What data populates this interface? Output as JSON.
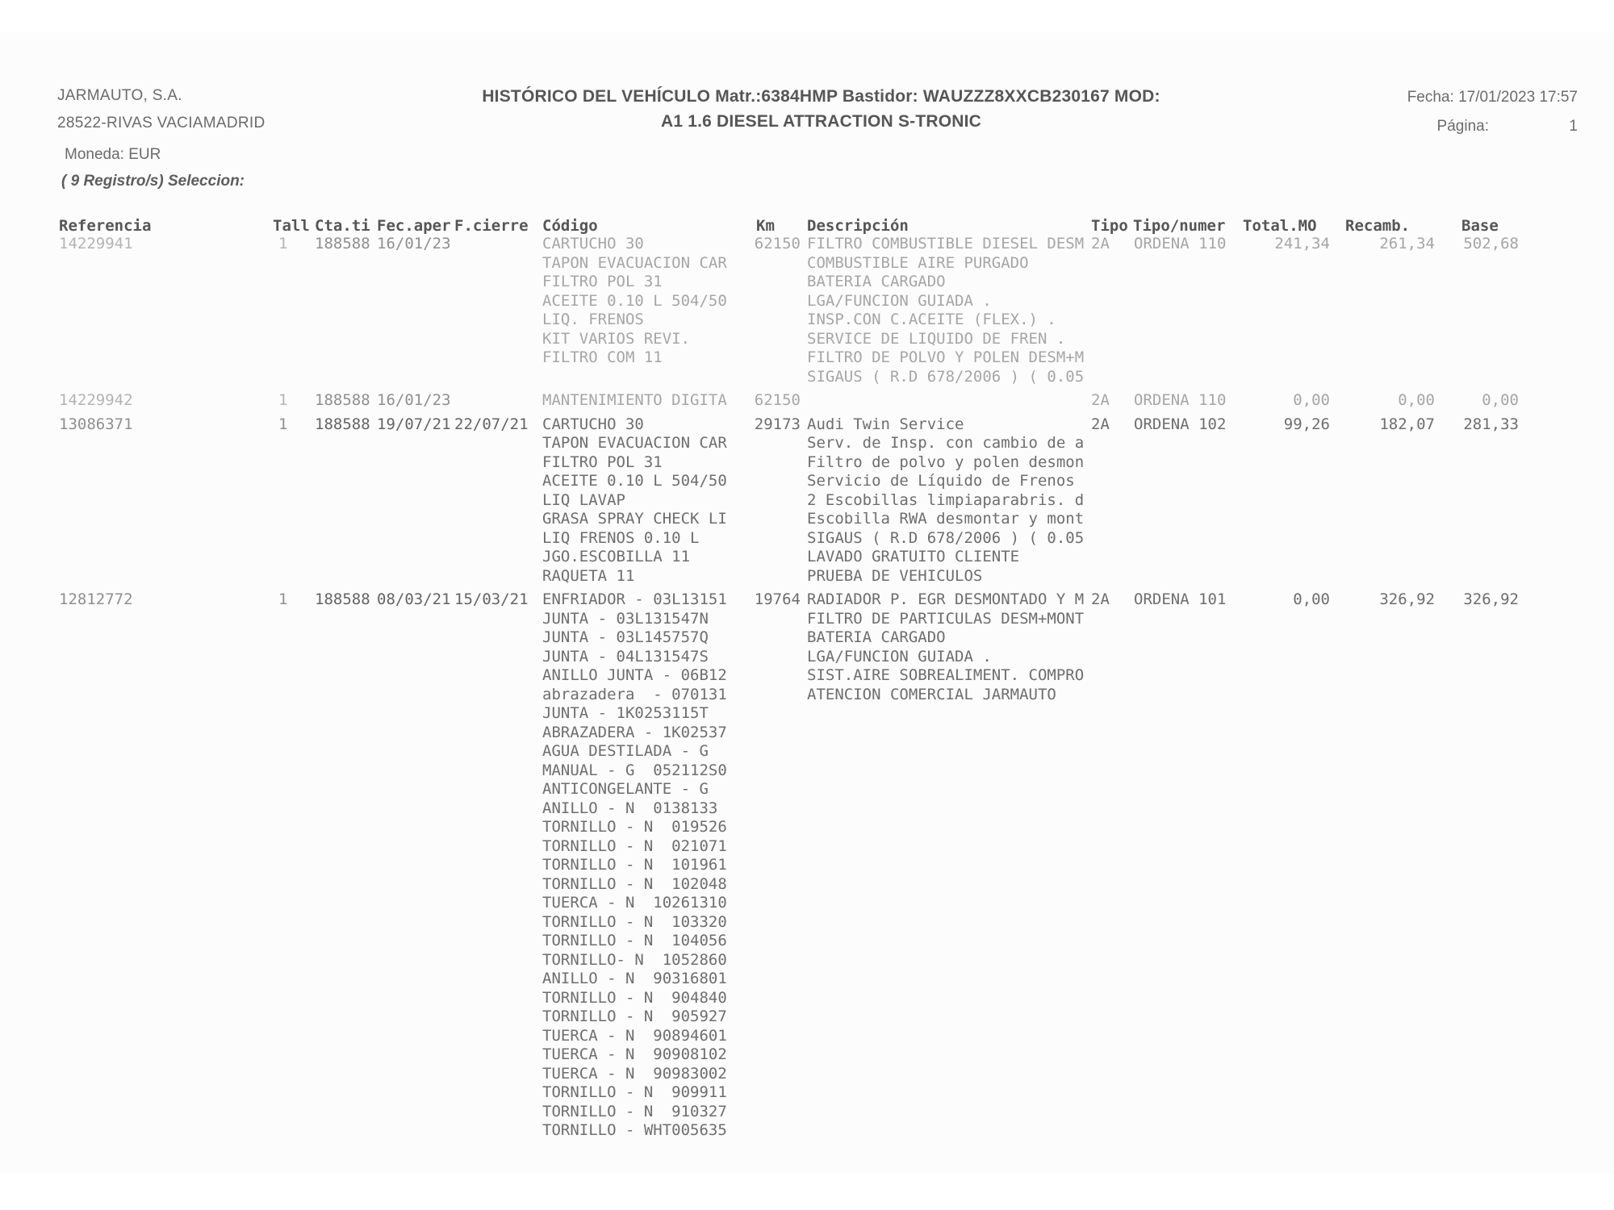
{
  "page": {
    "company": "JARMAUTO, S.A.",
    "location": "28522-RIVAS VACIAMADRID",
    "currency_label": "Moneda: EUR",
    "selection_label": "( 9 Registro/s) Seleccion:",
    "title_line1": "HISTÓRICO DEL VEHÍCULO Matr.:6384HMP Bastidor: WAUZZZ8XXCB230167 MOD:",
    "title_line2": "A1 1.6 DIESEL ATTRACTION S-TRONIC",
    "date_label": "Fecha: 17/01/2023 17:57",
    "page_label": "Página:",
    "page_number": "1"
  },
  "table": {
    "headers": {
      "referencia": "Referencia",
      "tall": "Tall",
      "cta": "Cta.ti",
      "fec_aper": "Fec.aper",
      "f_cierre": "F.cierre",
      "codigo": "Código",
      "km": "Km",
      "descripcion": "Descripción",
      "tipo": "Tipo",
      "tipo_numer": "Tipo/numer",
      "total_mo": "Total.MO",
      "recamb": "Recamb.",
      "base": "Base"
    },
    "rows": [
      {
        "tone": "light",
        "referencia": "14229941",
        "tall": "1",
        "cta": "188588",
        "fec_aper": "16/01/23",
        "f_cierre": "",
        "codigo": [
          "CARTUCHO 30",
          "TAPON EVACUACION CAR",
          "FILTRO POL 31",
          "ACEITE 0.10 L 504/50",
          "LIQ. FRENOS",
          "KIT VARIOS REVI.",
          "FILTRO COM 11"
        ],
        "km": "62150",
        "descripcion": [
          "FILTRO COMBUSTIBLE DIESEL DESM",
          "COMBUSTIBLE AIRE PURGADO",
          "BATERIA CARGADO",
          "LGA/FUNCION GUIADA .",
          "INSP.CON C.ACEITE (FLEX.) .",
          "SERVICE DE LIQUIDO DE FREN .",
          "FILTRO DE POLVO Y POLEN DESM+M",
          "SIGAUS ( R.D 678/2006 ) ( 0.05"
        ],
        "tipo": "2A",
        "tipo_numer": "ORDENA 110",
        "total_mo": "241,34",
        "recamb": "261,34",
        "base": "502,68"
      },
      {
        "tone": "light",
        "referencia": "14229942",
        "tall": "1",
        "cta": "188588",
        "fec_aper": "16/01/23",
        "f_cierre": "",
        "codigo": [
          "MANTENIMIENTO DIGITA"
        ],
        "km": "62150",
        "descripcion": [],
        "tipo": "2A",
        "tipo_numer": "ORDENA 110",
        "total_mo": "0,00",
        "recamb": "0,00",
        "base": "0,00"
      },
      {
        "tone": "dark",
        "referencia": "13086371",
        "tall": "1",
        "cta": "188588",
        "fec_aper": "19/07/21",
        "f_cierre": "22/07/21",
        "codigo": [
          "CARTUCHO 30",
          "TAPON EVACUACION CAR",
          "FILTRO POL 31",
          "ACEITE 0.10 L 504/50",
          "LIQ LAVAP",
          "GRASA SPRAY CHECK LI",
          "LIQ FRENOS 0.10 L",
          "JGO.ESCOBILLA 11",
          "RAQUETA 11"
        ],
        "km": "29173",
        "descripcion": [
          "Audi Twin Service",
          "Serv. de Insp. con cambio de a",
          "Filtro de polvo y polen desmon",
          "Servicio de Líquido de Frenos",
          "2 Escobillas limpiaparabris. d",
          "Escobilla RWA desmontar y mont",
          "SIGAUS ( R.D 678/2006 ) ( 0.05",
          "LAVADO GRATUITO CLIENTE",
          "PRUEBA DE VEHICULOS"
        ],
        "tipo": "2A",
        "tipo_numer": "ORDENA 102",
        "total_mo": "99,26",
        "recamb": "182,07",
        "base": "281,33"
      },
      {
        "tone": "dark",
        "referencia": "12812772",
        "tall": "1",
        "cta": "188588",
        "fec_aper": "08/03/21",
        "f_cierre": "15/03/21",
        "codigo": [
          "ENFRIADOR - 03L13151",
          "JUNTA - 03L131547N",
          "JUNTA - 03L145757Q",
          "JUNTA - 04L131547S",
          "ANILLO JUNTA - 06B12",
          "abrazadera  - 070131",
          "JUNTA - 1K0253115T",
          "ABRAZADERA - 1K02537",
          "AGUA DESTILADA - G",
          "MANUAL - G  052112S0",
          "ANTICONGELANTE - G",
          "ANILLO - N  0138133",
          "TORNILLO - N  019526",
          "TORNILLO - N  021071",
          "TORNILLO - N  101961",
          "TORNILLO - N  102048",
          "TUERCA - N  10261310",
          "TORNILLO - N  103320",
          "TORNILLO - N  104056",
          "TORNILLO- N  1052860",
          "ANILLO - N  90316801",
          "TORNILLO - N  904840",
          "TORNILLO - N  905927",
          "TUERCA - N  90894601",
          "TUERCA - N  90908102",
          "TUERCA - N  90983002",
          "TORNILLO - N  909911",
          "TORNILLO - N  910327",
          "TORNILLO - WHT005635"
        ],
        "km": "19764",
        "descripcion": [
          "RADIADOR P. EGR DESMONTADO Y M",
          "FILTRO DE PARTICULAS DESM+MONT",
          "BATERIA CARGADO",
          "LGA/FUNCION GUIADA .",
          "SIST.AIRE SOBREALIMENT. COMPRO",
          "ATENCION COMERCIAL JARMAUTO"
        ],
        "tipo": "2A",
        "tipo_numer": "ORDENA 101",
        "total_mo": "0,00",
        "recamb": "326,92",
        "base": "326,92"
      }
    ]
  }
}
